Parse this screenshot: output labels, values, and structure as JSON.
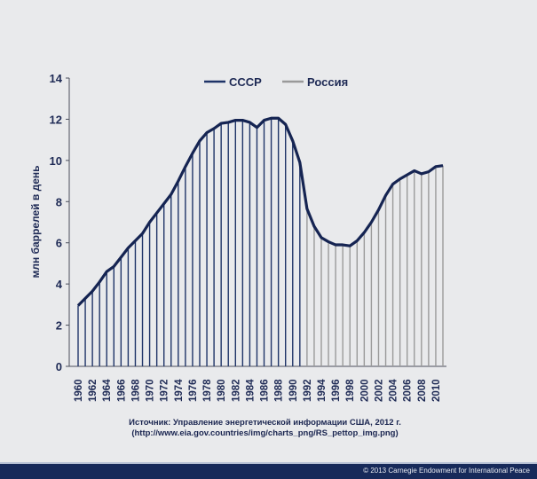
{
  "chart_data": {
    "type": "line",
    "ylabel": "млн баррелей в день",
    "xlabel": "",
    "ylim": [
      0,
      14
    ],
    "yticks": [
      0,
      2,
      4,
      6,
      8,
      10,
      12,
      14
    ],
    "xticks": [
      1960,
      1962,
      1964,
      1966,
      1968,
      1970,
      1972,
      1974,
      1976,
      1978,
      1980,
      1982,
      1984,
      1986,
      1988,
      1990,
      1992,
      1994,
      1996,
      1998,
      2000,
      2002,
      2004,
      2006,
      2008,
      2010
    ],
    "grid": false,
    "legend_placement": "top-center",
    "series": [
      {
        "name": "СССР",
        "color": "#1f3468",
        "x": [
          1960,
          1961,
          1962,
          1963,
          1964,
          1965,
          1966,
          1967,
          1968,
          1969,
          1970,
          1971,
          1972,
          1973,
          1974,
          1975,
          1976,
          1977,
          1978,
          1979,
          1980,
          1981,
          1982,
          1983,
          1984,
          1985,
          1986,
          1987,
          1988,
          1989,
          1990,
          1991
        ],
        "values": [
          2.95,
          3.3,
          3.65,
          4.1,
          4.6,
          4.85,
          5.3,
          5.75,
          6.1,
          6.45,
          7.0,
          7.45,
          7.9,
          8.35,
          9.0,
          9.7,
          10.35,
          10.95,
          11.35,
          11.55,
          11.8,
          11.85,
          11.95,
          11.95,
          11.85,
          11.6,
          11.95,
          12.05,
          12.05,
          11.75,
          10.95,
          9.9
        ]
      },
      {
        "name": "Россия",
        "color": "#9a9a9a",
        "x": [
          1992,
          1993,
          1994,
          1995,
          1996,
          1997,
          1998,
          1999,
          2000,
          2001,
          2002,
          2003,
          2004,
          2005,
          2006,
          2007,
          2008,
          2009,
          2010,
          2011
        ],
        "values": [
          7.65,
          6.8,
          6.25,
          6.05,
          5.9,
          5.9,
          5.85,
          6.1,
          6.5,
          7.0,
          7.6,
          8.3,
          8.85,
          9.1,
          9.3,
          9.5,
          9.35,
          9.45,
          9.7,
          9.75
        ]
      }
    ],
    "curve_color": "#152452"
  },
  "source": {
    "line1": "Источник: Управление энергетической информации США, 2012 г.",
    "line2": "(http://www.eia.gov.countries/img/charts_png/RS_pettop_img.png)"
  },
  "footer": {
    "copyright": "© 2013 Carnegie Endowment for International Peace"
  }
}
